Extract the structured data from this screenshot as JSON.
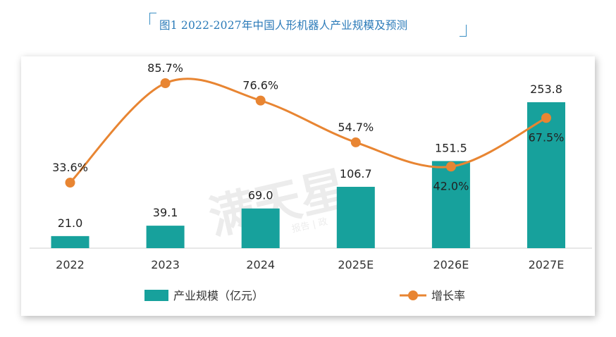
{
  "title": "图1 2022-2027年中国人形机器人产业规模及预测",
  "chart_data": {
    "type": "bar",
    "categories": [
      "2022",
      "2023",
      "2024",
      "2025E",
      "2026E",
      "2027E"
    ],
    "series": [
      {
        "name": "产业规模（亿元）",
        "type": "bar",
        "values": [
          21.0,
          39.1,
          69.0,
          106.7,
          151.5,
          253.8
        ],
        "labels": [
          "21.0",
          "39.1",
          "69.0",
          "106.7",
          "151.5",
          "253.8"
        ],
        "color": "#17a19c"
      },
      {
        "name": "增长率",
        "type": "line",
        "values": [
          33.6,
          85.7,
          76.6,
          54.7,
          42.0,
          67.5
        ],
        "labels": [
          "33.6%",
          "85.7%",
          "76.6%",
          "54.7%",
          "42.0%",
          "67.5%"
        ],
        "color": "#e88532"
      }
    ],
    "legend_position": "bottom",
    "grid": false
  },
  "watermark": {
    "text": "满天星",
    "subtext": "报告 | 政"
  }
}
